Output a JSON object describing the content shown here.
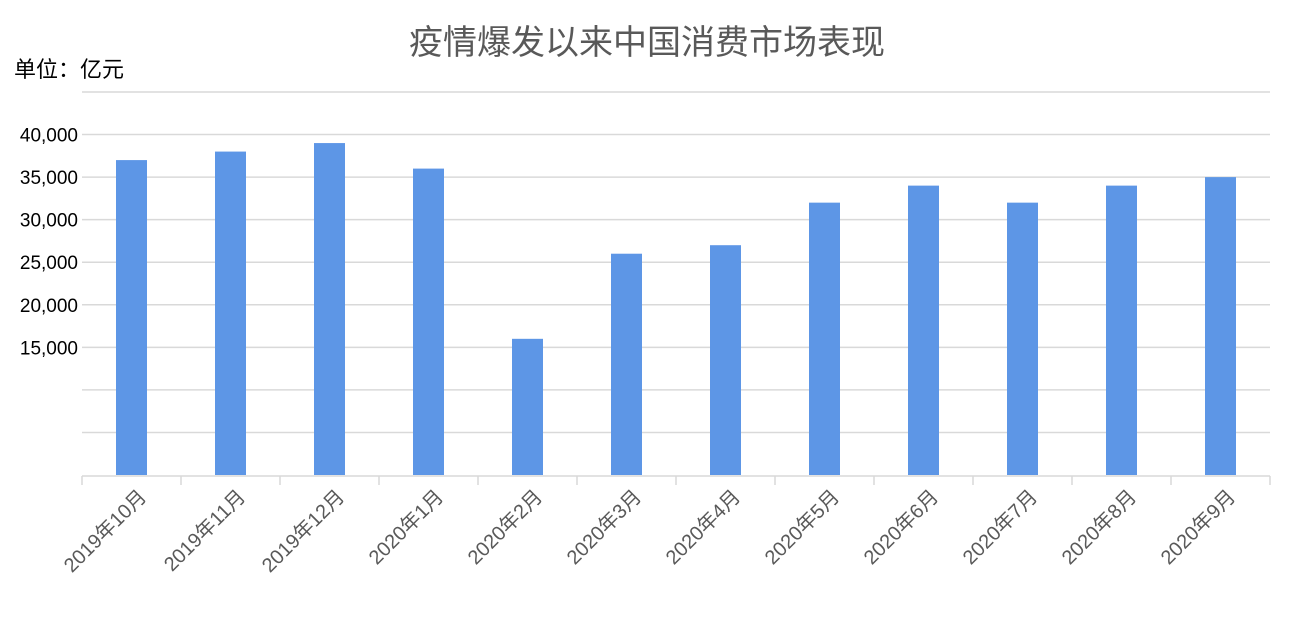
{
  "chart_data": {
    "type": "bar",
    "title": "疫情爆发以来中国消费市场表现",
    "unit_label": "单位：亿元",
    "categories": [
      "2019年10月",
      "2019年11月",
      "2019年12月",
      "2020年1月",
      "2020年2月",
      "2020年3月",
      "2020年4月",
      "2020年5月",
      "2020年6月",
      "2020年7月",
      "2020年8月",
      "2020年9月"
    ],
    "values": [
      37000,
      38000,
      39000,
      36000,
      16000,
      26000,
      27000,
      32000,
      34000,
      32000,
      34000,
      35000
    ],
    "ylim": [
      0,
      45000
    ],
    "yticks": [
      0,
      5000,
      10000,
      15000,
      20000,
      25000,
      30000,
      35000,
      40000,
      45000
    ],
    "ytick_labels": [
      "",
      "",
      "",
      "15,000",
      "20,000",
      "25,000",
      "30,000",
      "35,000",
      "40,000",
      ""
    ],
    "grid": true,
    "legend": "none",
    "bar_color": "#5D96E6",
    "grid_color": "#D9D9D9"
  }
}
